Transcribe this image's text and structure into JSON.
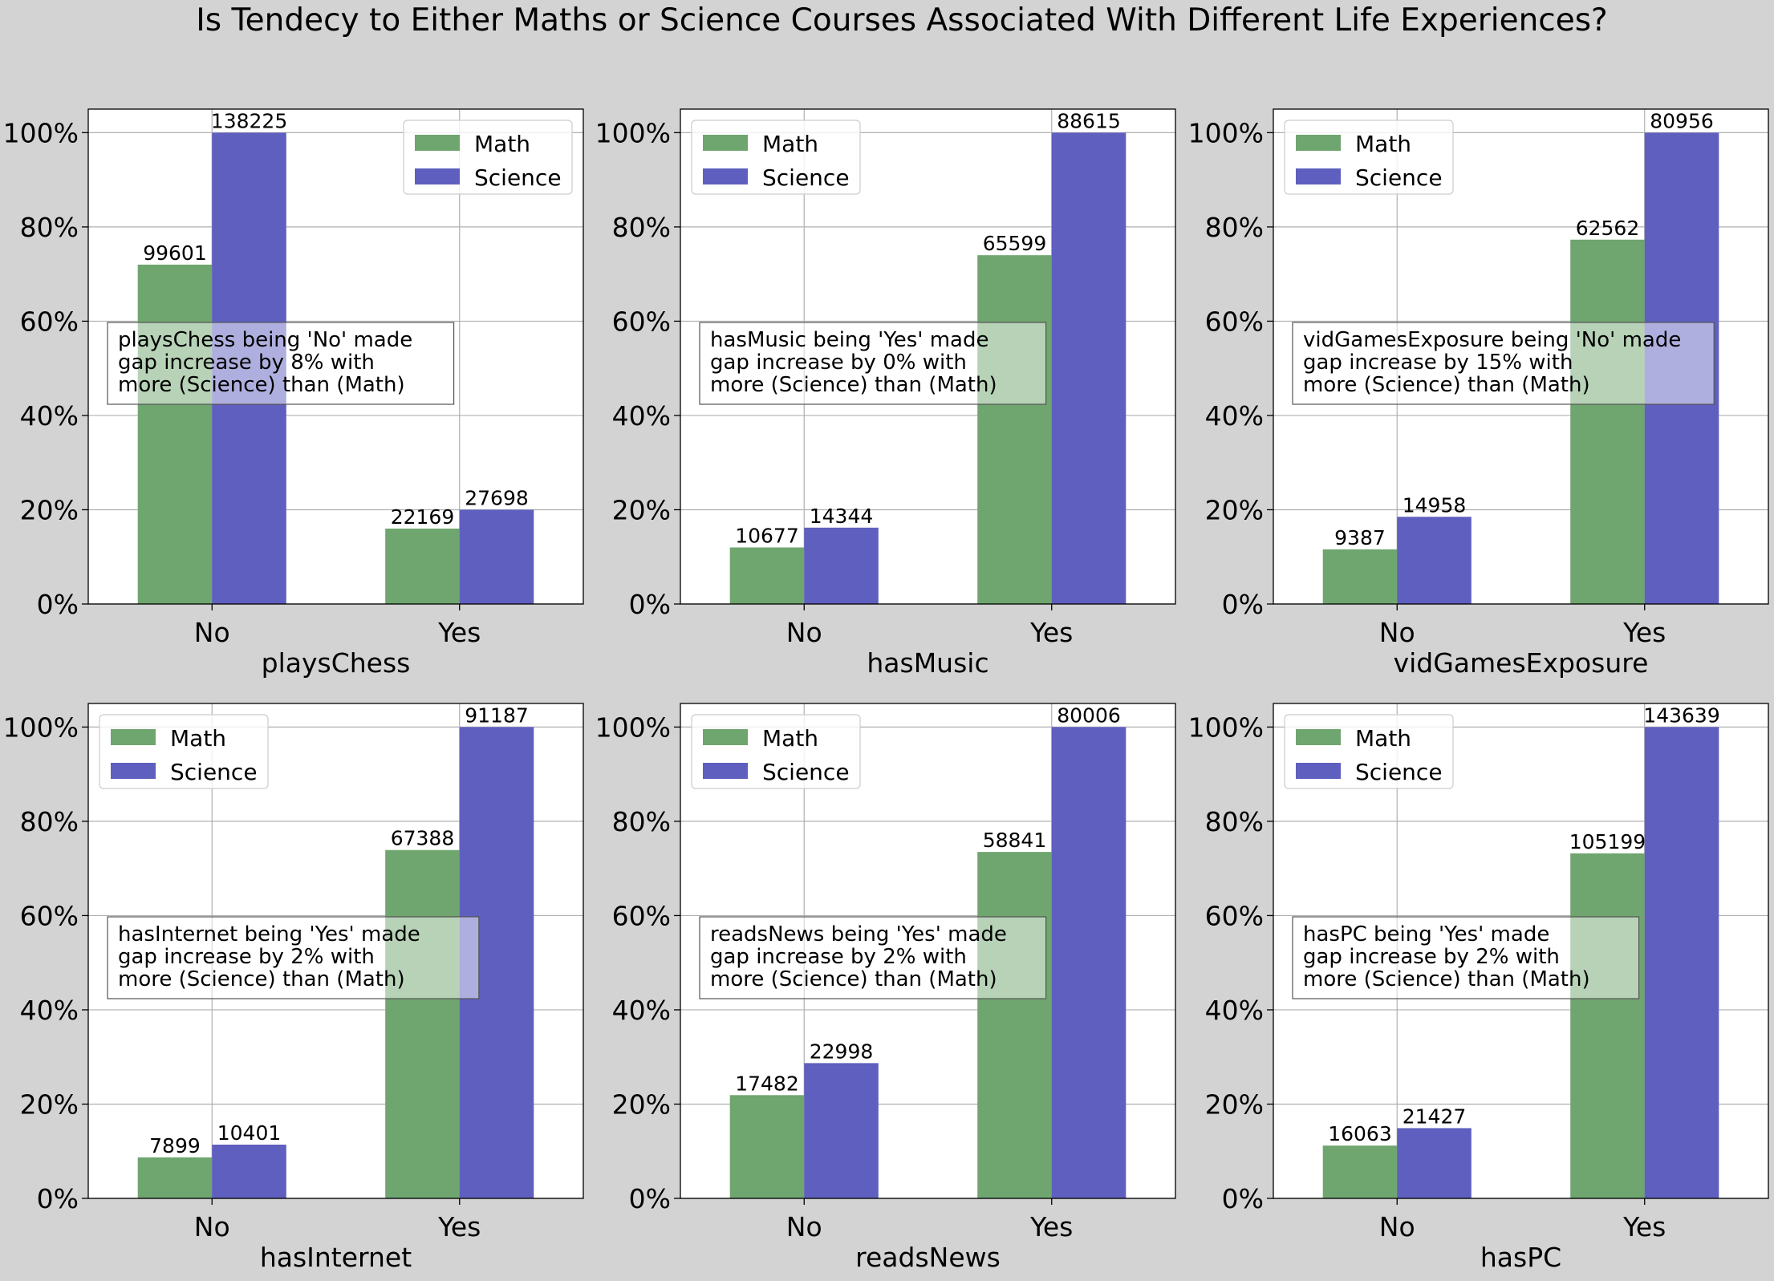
{
  "figure": {
    "title": "Is Tendecy to Either Maths or Science Courses Associated With Different Life Experiences?",
    "background": "#d3d3d3"
  },
  "colors": {
    "math": "#6fa56f",
    "science": "#5f5fbf",
    "grid": "#b0b0b0",
    "axes_bg": "#ffffff"
  },
  "chart_data": [
    {
      "type": "bar",
      "xlabel": "playsChess",
      "categories": [
        "No",
        "Yes"
      ],
      "ylim": [
        0,
        105
      ],
      "yticks": [
        "0%",
        "20%",
        "40%",
        "60%",
        "80%",
        "100%"
      ],
      "grid": true,
      "legend_position": "top-right",
      "series": [
        {
          "name": "Math",
          "values": [
            72,
            16
          ],
          "labels": [
            "99601",
            "22169"
          ]
        },
        {
          "name": "Science",
          "values": [
            100,
            20
          ],
          "labels": [
            "138225",
            "27698"
          ]
        }
      ],
      "annotation": [
        "playsChess being 'No' made",
        "gap increase by 8% with",
        "more (Science) than (Math)"
      ]
    },
    {
      "type": "bar",
      "xlabel": "hasMusic",
      "categories": [
        "No",
        "Yes"
      ],
      "ylim": [
        0,
        105
      ],
      "yticks": [
        "0%",
        "20%",
        "40%",
        "60%",
        "80%",
        "100%"
      ],
      "grid": true,
      "legend_position": "top-left",
      "series": [
        {
          "name": "Math",
          "values": [
            12,
            74
          ],
          "labels": [
            "10677",
            "65599"
          ]
        },
        {
          "name": "Science",
          "values": [
            16.2,
            100
          ],
          "labels": [
            "14344",
            "88615"
          ]
        }
      ],
      "annotation": [
        "hasMusic being 'Yes' made",
        "gap increase by 0% with",
        "more (Science) than (Math)"
      ]
    },
    {
      "type": "bar",
      "xlabel": "vidGamesExposure",
      "categories": [
        "No",
        "Yes"
      ],
      "ylim": [
        0,
        105
      ],
      "yticks": [
        "0%",
        "20%",
        "40%",
        "60%",
        "80%",
        "100%"
      ],
      "grid": true,
      "legend_position": "top-left",
      "series": [
        {
          "name": "Math",
          "values": [
            11.6,
            77.3
          ],
          "labels": [
            "9387",
            "62562"
          ]
        },
        {
          "name": "Science",
          "values": [
            18.5,
            100
          ],
          "labels": [
            "14958",
            "80956"
          ]
        }
      ],
      "annotation": [
        "vidGamesExposure being 'No' made",
        "gap increase by 15% with",
        "more (Science) than (Math)"
      ]
    },
    {
      "type": "bar",
      "xlabel": "hasInternet",
      "categories": [
        "No",
        "Yes"
      ],
      "ylim": [
        0,
        105
      ],
      "yticks": [
        "0%",
        "20%",
        "40%",
        "60%",
        "80%",
        "100%"
      ],
      "grid": true,
      "legend_position": "top-left",
      "series": [
        {
          "name": "Math",
          "values": [
            8.7,
            73.9
          ],
          "labels": [
            "7899",
            "67388"
          ]
        },
        {
          "name": "Science",
          "values": [
            11.4,
            100
          ],
          "labels": [
            "10401",
            "91187"
          ]
        }
      ],
      "annotation": [
        "hasInternet being 'Yes' made",
        "gap increase by 2% with",
        "more (Science) than (Math)"
      ]
    },
    {
      "type": "bar",
      "xlabel": "readsNews",
      "categories": [
        "No",
        "Yes"
      ],
      "ylim": [
        0,
        105
      ],
      "yticks": [
        "0%",
        "20%",
        "40%",
        "60%",
        "80%",
        "100%"
      ],
      "grid": true,
      "legend_position": "top-left",
      "series": [
        {
          "name": "Math",
          "values": [
            21.9,
            73.5
          ],
          "labels": [
            "17482",
            "58841"
          ]
        },
        {
          "name": "Science",
          "values": [
            28.7,
            100
          ],
          "labels": [
            "22998",
            "80006"
          ]
        }
      ],
      "annotation": [
        "readsNews being 'Yes' made",
        "gap increase by 2% with",
        "more (Science) than (Math)"
      ]
    },
    {
      "type": "bar",
      "xlabel": "hasPC",
      "categories": [
        "No",
        "Yes"
      ],
      "ylim": [
        0,
        105
      ],
      "yticks": [
        "0%",
        "20%",
        "40%",
        "60%",
        "80%",
        "100%"
      ],
      "grid": true,
      "legend_position": "top-left",
      "series": [
        {
          "name": "Math",
          "values": [
            11.2,
            73.2
          ],
          "labels": [
            "16063",
            "105199"
          ]
        },
        {
          "name": "Science",
          "values": [
            14.9,
            100
          ],
          "labels": [
            "21427",
            "143639"
          ]
        }
      ],
      "annotation": [
        "hasPC being 'Yes' made",
        "gap increase by 2% with",
        "more (Science) than (Math)"
      ]
    }
  ]
}
